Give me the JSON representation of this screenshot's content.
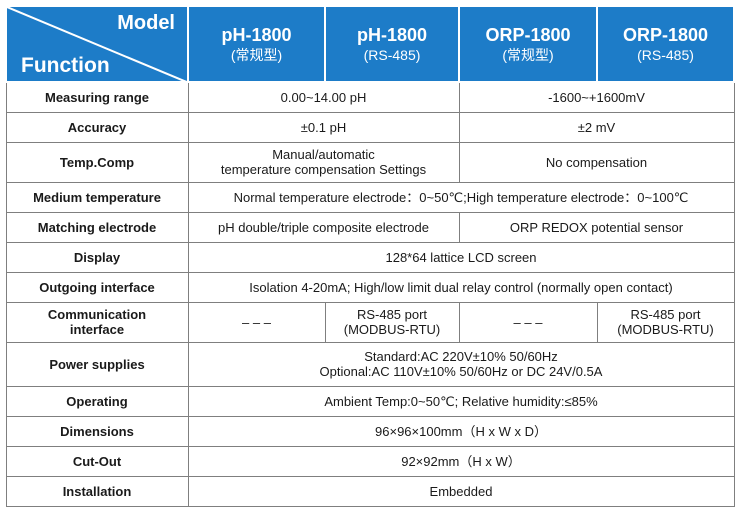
{
  "header": {
    "model_label": "Model",
    "function_label": "Function",
    "products": [
      {
        "name": "pH-1800",
        "variant": "(常规型)"
      },
      {
        "name": "pH-1800",
        "variant": "(RS-485)"
      },
      {
        "name": "ORP-1800",
        "variant": "(常规型)"
      },
      {
        "name": "ORP-1800",
        "variant": "(RS-485)"
      }
    ]
  },
  "rows": {
    "measuring_range": {
      "label": "Measuring range",
      "ph": "0.00~14.00 pH",
      "orp": "-1600~+1600mV"
    },
    "accuracy": {
      "label": "Accuracy",
      "ph": "±0.1 pH",
      "orp": "±2 mV"
    },
    "temp_comp": {
      "label": "Temp.Comp",
      "ph_line1": "Manual/automatic",
      "ph_line2": "temperature compensation Settings",
      "orp": "No compensation"
    },
    "medium_temperature": {
      "label": "Medium temperature",
      "value": "Normal temperature electrode：0~50℃;High temperature electrode：0~100℃"
    },
    "matching_electrode": {
      "label": "Matching electrode",
      "ph": "pH double/triple composite electrode",
      "orp": "ORP REDOX potential sensor"
    },
    "display": {
      "label": "Display",
      "value": "128*64 lattice LCD screen"
    },
    "outgoing_interface": {
      "label": "Outgoing interface",
      "value": "Isolation 4-20mA; High/low limit dual relay control (normally open contact)"
    },
    "communication_interface": {
      "label_line1": "Communication",
      "label_line2": "interface",
      "ph_standard": "– – –",
      "ph_rs485_line1": "RS-485 port",
      "ph_rs485_line2": "(MODBUS-RTU)",
      "orp_standard": "– – –",
      "orp_rs485_line1": "RS-485 port",
      "orp_rs485_line2": "(MODBUS-RTU)"
    },
    "power_supplies": {
      "label": "Power supplies",
      "line1": "Standard:AC 220V±10% 50/60Hz",
      "line2": "Optional:AC 110V±10% 50/60Hz or DC 24V/0.5A"
    },
    "operating": {
      "label": "Operating",
      "value": "Ambient Temp:0~50℃;  Relative humidity:≤85%"
    },
    "dimensions": {
      "label": "Dimensions",
      "value": "96×96×100mm（H x W x D）"
    },
    "cut_out": {
      "label": "Cut-Out",
      "value": "92×92mm（H x W）"
    },
    "installation": {
      "label": "Installation",
      "value": "Embedded"
    }
  }
}
